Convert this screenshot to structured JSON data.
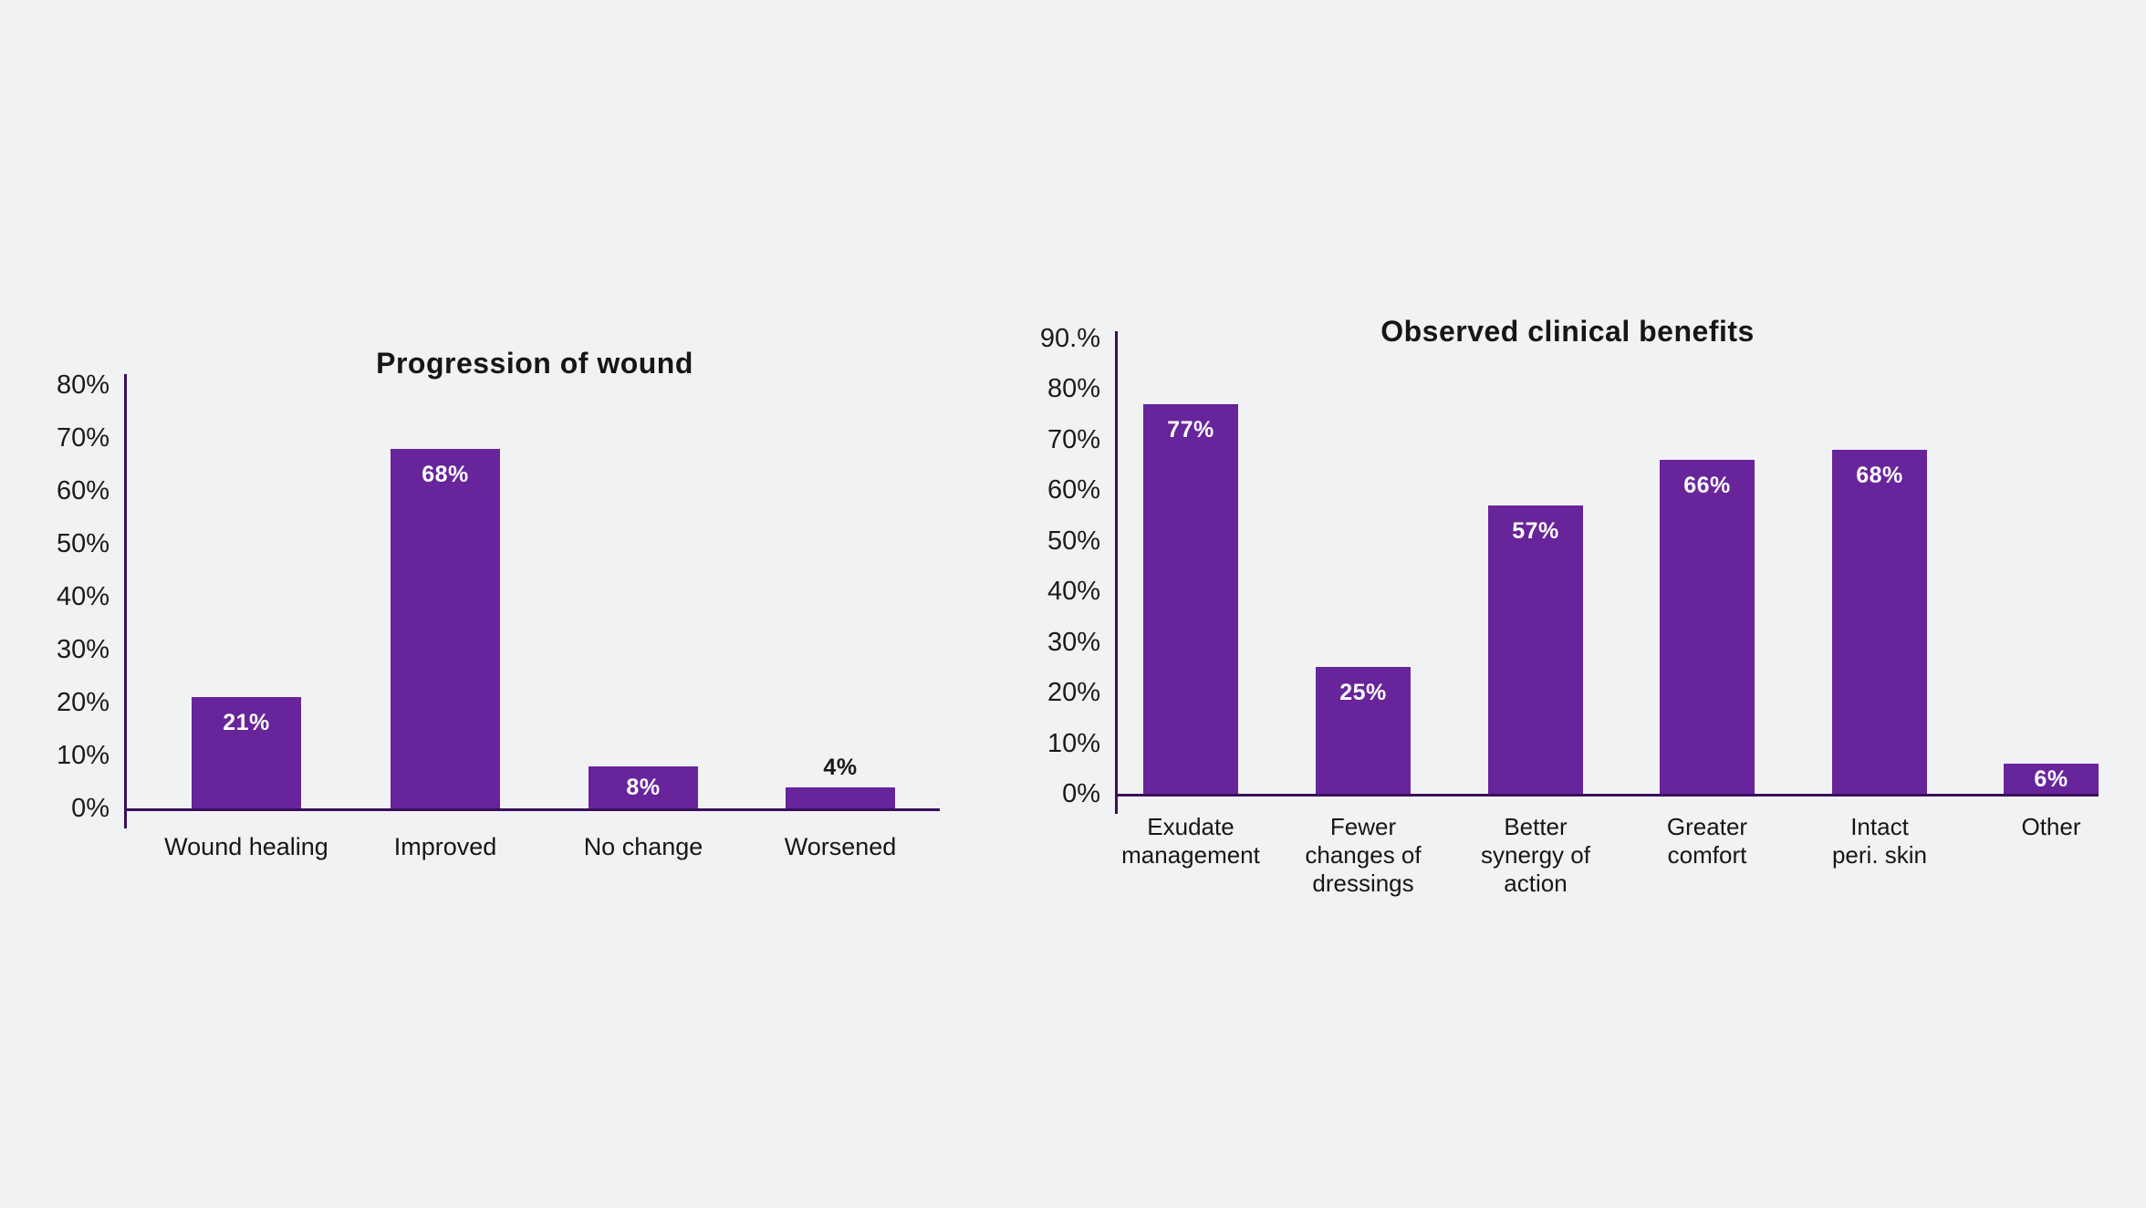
{
  "page": {
    "background_color": "#F1F2F4",
    "text_color": "#161616",
    "bar_color": "#67249B",
    "axis_color": "#3A0F5B",
    "value_label_color_inside": "#FFFFFF",
    "value_label_color_above": "#1A1A1A"
  },
  "chart_data": [
    {
      "type": "bar",
      "title": "Progression of wound",
      "categories": [
        "Wound healing",
        "Improved",
        "No change",
        "Worsened"
      ],
      "values": [
        21,
        68,
        8,
        4
      ],
      "value_labels": [
        "21%",
        "68%",
        "8%",
        "4%"
      ],
      "value_label_pos": [
        "inside",
        "inside",
        "inside",
        "above"
      ],
      "ytick_labels": [
        "80%",
        "70%",
        "60%",
        "50%",
        "40%",
        "30%",
        "20%",
        "10%",
        "0%"
      ],
      "ytick_values": [
        80,
        70,
        60,
        50,
        40,
        30,
        20,
        10,
        0
      ],
      "ylim": [
        0,
        80
      ],
      "xlabel": "",
      "ylabel": "",
      "grid": false,
      "legend": false,
      "bar_color": "#67249B",
      "axis_color": "#3A0F5B"
    },
    {
      "type": "bar",
      "title": "Observed clinical benefits",
      "categories": [
        "Exudate\nmanagement",
        "Fewer\nchanges of\ndressings",
        "Better\nsynergy of\naction",
        "Greater\ncomfort",
        "Intact\nperi. skin",
        "Other"
      ],
      "values": [
        77,
        25,
        57,
        66,
        68,
        6
      ],
      "value_labels": [
        "77%",
        "25%",
        "57%",
        "66%",
        "68%",
        "6%"
      ],
      "value_label_pos": [
        "inside",
        "inside",
        "inside",
        "inside",
        "inside",
        "inside"
      ],
      "ytick_labels": [
        "90.%",
        "80%",
        "70%",
        "60%",
        "50%",
        "40%",
        "30%",
        "20%",
        "10%",
        "0%"
      ],
      "ytick_values": [
        90,
        80,
        70,
        60,
        50,
        40,
        30,
        20,
        10,
        0
      ],
      "ylim": [
        0,
        90
      ],
      "xlabel": "",
      "ylabel": "",
      "grid": false,
      "legend": false,
      "bar_color": "#67249B",
      "axis_color": "#3A0F5B"
    }
  ]
}
